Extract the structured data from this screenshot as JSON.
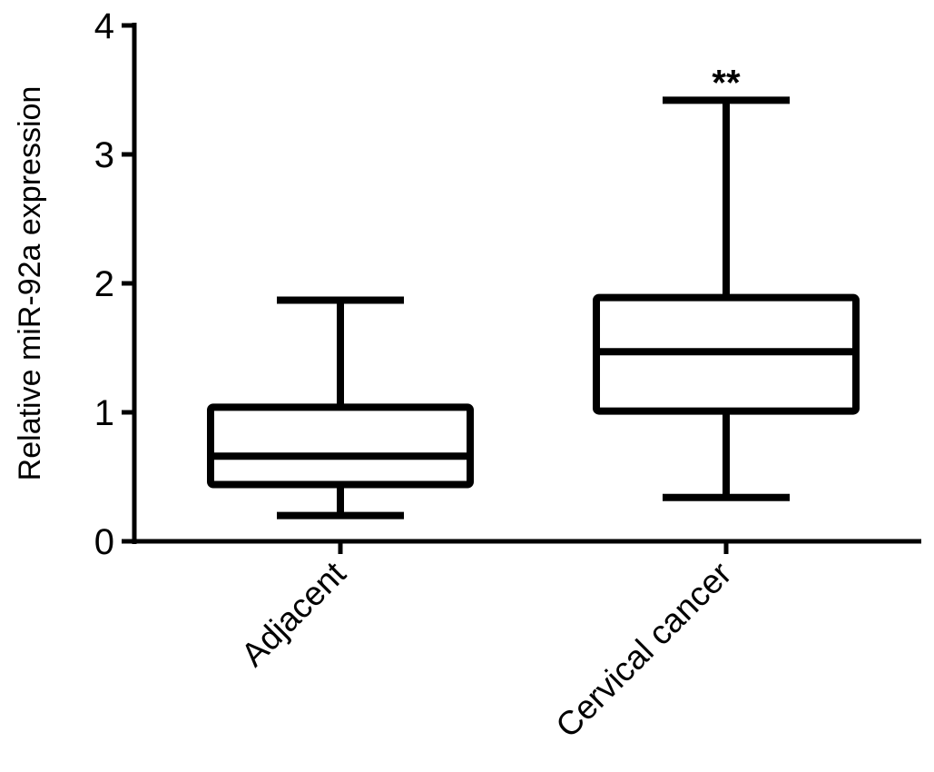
{
  "chart_data": {
    "type": "box",
    "title": "",
    "xlabel": "",
    "ylabel": "Relative miR-92a expression",
    "ylim": [
      0,
      4
    ],
    "yticks": [
      0,
      1,
      2,
      3,
      4
    ],
    "grid": false,
    "categories": [
      "Adjacent",
      "Cervical cancer"
    ],
    "boxes": [
      {
        "category": "Adjacent",
        "min": 0.2,
        "q1": 0.44,
        "median": 0.66,
        "q3": 1.04,
        "max": 1.87,
        "annotation": ""
      },
      {
        "category": "Cervical cancer",
        "min": 0.34,
        "q1": 1.01,
        "median": 1.47,
        "q3": 1.89,
        "max": 3.42,
        "annotation": "**"
      }
    ],
    "color": "#000000"
  }
}
